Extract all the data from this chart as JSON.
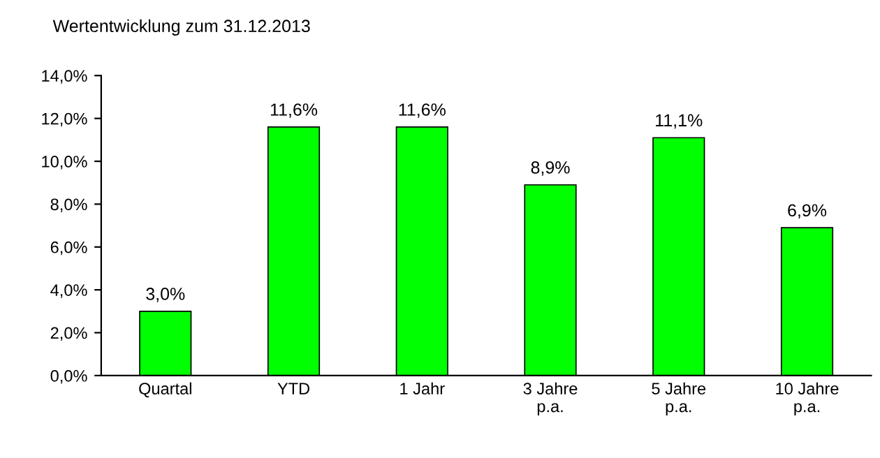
{
  "chart_data": {
    "type": "bar",
    "title": "Wertentwicklung zum 31.12.2013",
    "categories": [
      "Quartal",
      "YTD",
      "1 Jahr",
      "3 Jahre\np.a.",
      "5 Jahre\np.a.",
      "10 Jahre\np.a."
    ],
    "values": [
      3.0,
      11.6,
      11.6,
      8.9,
      11.1,
      6.9
    ],
    "value_labels": [
      "3,0%",
      "11,6%",
      "11,6%",
      "8,9%",
      "11,1%",
      "6,9%"
    ],
    "color": "#00ff00",
    "ylim": [
      0,
      14
    ],
    "yticks": [
      {
        "value": 0,
        "label": "0,0%"
      },
      {
        "value": 2,
        "label": "2,0%"
      },
      {
        "value": 4,
        "label": "4,0%"
      },
      {
        "value": 6,
        "label": "6,0%"
      },
      {
        "value": 8,
        "label": "8,0%"
      },
      {
        "value": 10,
        "label": "10,0%"
      },
      {
        "value": 12,
        "label": "12,0%"
      },
      {
        "value": 14,
        "label": "14,0%"
      }
    ],
    "grid": false,
    "legend": false
  }
}
